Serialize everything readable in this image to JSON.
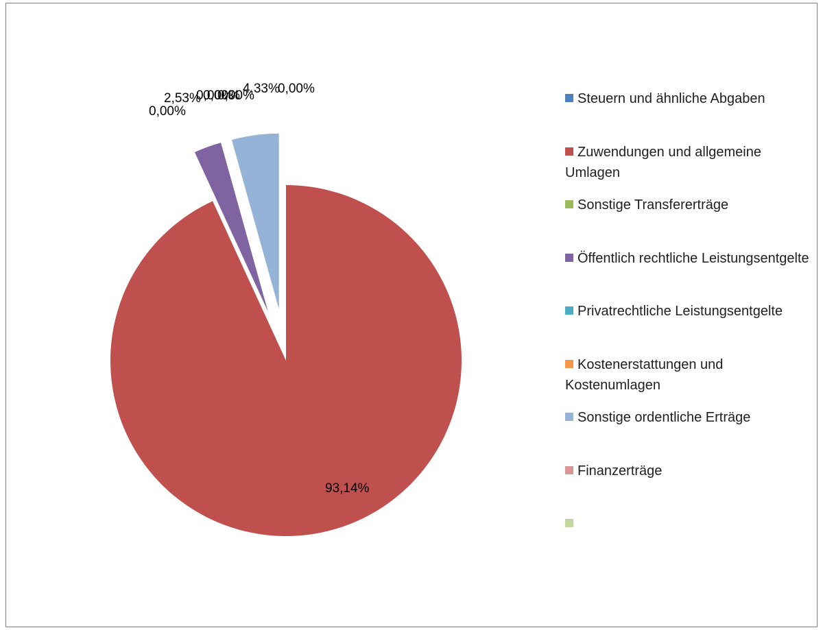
{
  "chart_data": {
    "type": "pie",
    "categories": [
      "Steuern und ähnliche Abgaben",
      "Zuwendungen und allgemeine Umlagen",
      "Sonstige Transfererträge",
      "Öffentlich rechtliche Leistungsentgelte",
      "Privatrechtliche Leistungsentgelte",
      "Kostenerstattungen und Kostenumlagen",
      "Sonstige ordentliche Erträge",
      "Finanzerträge",
      ""
    ],
    "values": [
      0.0,
      93.14,
      0.0,
      2.53,
      0.0,
      0.0,
      4.33,
      0.0,
      0.0
    ],
    "data_labels": [
      "0,00%",
      "93,14%",
      "0,00%",
      "2,53%",
      "0,00%",
      "0,00%",
      "4,33%",
      "0,00%",
      ""
    ],
    "colors": [
      "#4f81bd",
      "#c0504d",
      "#9bbb59",
      "#8064a2",
      "#4bacc6",
      "#f79646",
      "#95b3d7",
      "#d99694",
      "#c3d69b"
    ],
    "exploded": [
      false,
      false,
      false,
      true,
      false,
      false,
      true,
      false,
      false
    ],
    "legend": {
      "position": "right",
      "entries": [
        "Steuern und ähnliche Abgaben",
        "Zuwendungen und allgemeine Umlagen",
        "Sonstige Transfererträge",
        "Öffentlich rechtliche Leistungsentgelte",
        "Privatrechtliche Leistungsentgelte",
        "Kostenerstattungen und Kostenumlagen",
        "Sonstige ordentliche Erträge",
        "Finanzerträge",
        ""
      ]
    }
  }
}
